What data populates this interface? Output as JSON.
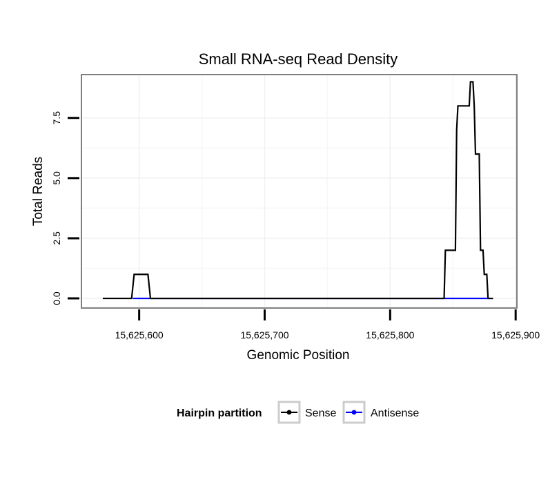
{
  "chart_data": {
    "type": "line",
    "title": "Small RNA-seq Read Density",
    "xlabel": "Genomic Position",
    "ylabel": "Total Reads",
    "xlim": [
      15625554,
      15625901
    ],
    "ylim": [
      -0.4,
      9.3
    ],
    "xticks": [
      15625600,
      15625700,
      15625800,
      15625900
    ],
    "xtick_labels": [
      "15,625,600",
      "15,625,700",
      "15,625,800",
      "15,625,900"
    ],
    "yticks": [
      0,
      2.5,
      5,
      7.5
    ],
    "ytick_labels": [
      "0.0",
      "2.5",
      "5.0",
      "7.5"
    ],
    "grid": true,
    "legend": {
      "title": "Hairpin partition",
      "placement": "bottom",
      "entries": [
        "Sense",
        "Antisense"
      ]
    },
    "series": [
      {
        "name": "Sense",
        "color": "#000000",
        "x": [
          15625571,
          15625594,
          15625596,
          15625607,
          15625609,
          15625843,
          15625844,
          15625852,
          15625853,
          15625854,
          15625863,
          15625864,
          15625866,
          15625867,
          15625868,
          15625871,
          15625872,
          15625874,
          15625875,
          15625877,
          15625878,
          15625881,
          15625882
        ],
        "y": [
          0,
          0,
          1,
          1,
          0,
          0,
          2,
          2,
          7,
          8,
          8,
          9,
          9,
          8,
          6,
          6,
          2,
          2,
          1,
          1,
          0,
          0,
          0
        ]
      },
      {
        "name": "Antisense",
        "color": "#0000ff",
        "x": [
          15625595,
          15625609,
          15625843,
          15625882
        ],
        "y": [
          0,
          0,
          0,
          0
        ]
      }
    ]
  }
}
